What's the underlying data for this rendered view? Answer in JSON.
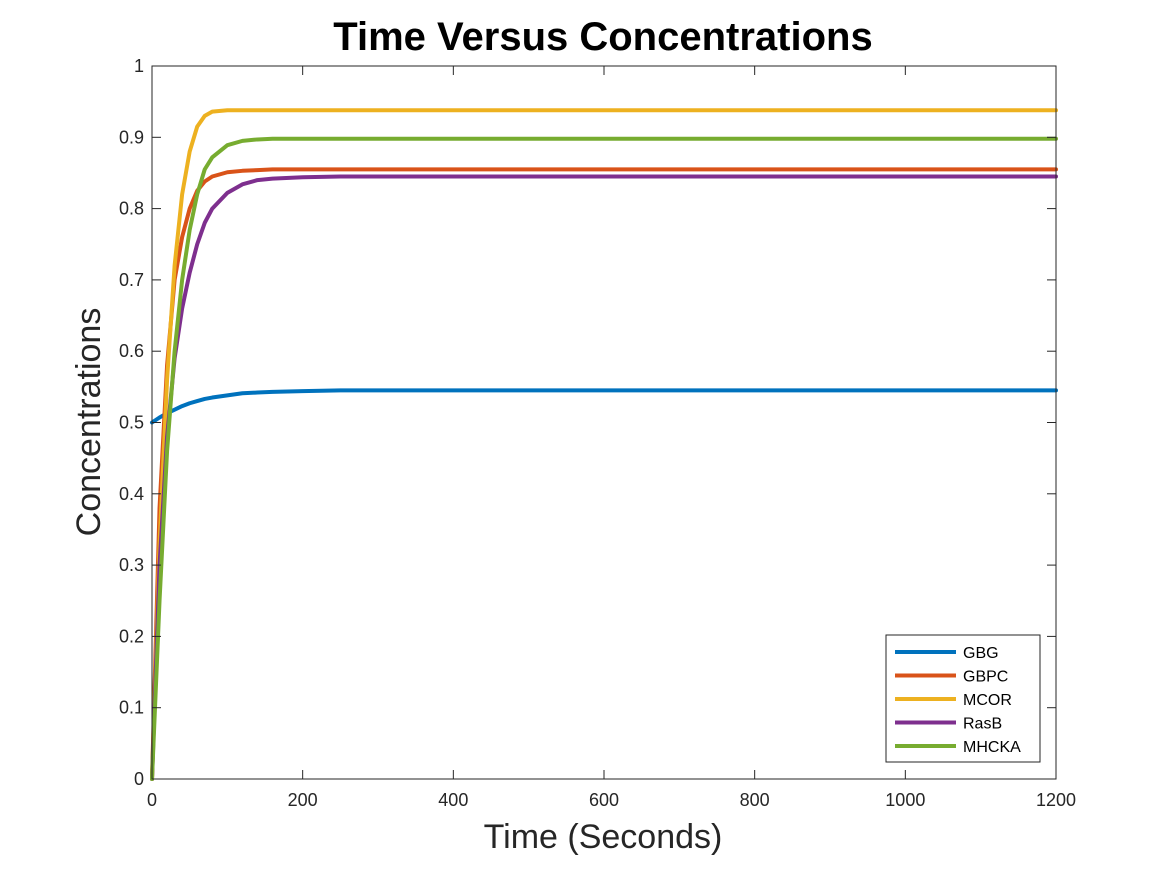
{
  "chart_data": {
    "type": "line",
    "title": "Time Versus Concentrations",
    "xlabel": "Time (Seconds)",
    "ylabel": "Concentrations",
    "xlim": [
      0,
      1200
    ],
    "ylim": [
      0,
      1
    ],
    "xticks": [
      "0",
      "200",
      "400",
      "600",
      "800",
      "1000",
      "1200"
    ],
    "xtick_values": [
      0,
      200,
      400,
      600,
      800,
      1000,
      1200
    ],
    "yticks": [
      "0",
      "0.1",
      "0.2",
      "0.3",
      "0.4",
      "0.5",
      "0.6",
      "0.7",
      "0.8",
      "0.9",
      "1"
    ],
    "ytick_values": [
      0,
      0.1,
      0.2,
      0.3,
      0.4,
      0.5,
      0.6,
      0.7,
      0.8,
      0.9,
      1
    ],
    "grid": false,
    "legend_position": "bottom-right",
    "x": [
      0,
      10,
      20,
      30,
      40,
      50,
      60,
      70,
      80,
      100,
      120,
      140,
      160,
      200,
      250,
      300,
      400,
      600,
      800,
      1000,
      1200
    ],
    "series": [
      {
        "name": "GBG",
        "color": "#0072BD",
        "values": [
          0.5,
          0.507,
          0.513,
          0.518,
          0.523,
          0.527,
          0.53,
          0.533,
          0.535,
          0.538,
          0.541,
          0.542,
          0.543,
          0.544,
          0.545,
          0.545,
          0.545,
          0.545,
          0.545,
          0.545,
          0.545
        ]
      },
      {
        "name": "GBPC",
        "color": "#D95319",
        "values": [
          0.0,
          0.38,
          0.58,
          0.7,
          0.76,
          0.8,
          0.825,
          0.838,
          0.845,
          0.851,
          0.853,
          0.854,
          0.855,
          0.855,
          0.855,
          0.855,
          0.855,
          0.855,
          0.855,
          0.855,
          0.855
        ]
      },
      {
        "name": "MCOR",
        "color": "#EDB120",
        "values": [
          0.0,
          0.33,
          0.56,
          0.72,
          0.82,
          0.88,
          0.915,
          0.93,
          0.936,
          0.938,
          0.938,
          0.938,
          0.938,
          0.938,
          0.938,
          0.938,
          0.938,
          0.938,
          0.938,
          0.938,
          0.938
        ]
      },
      {
        "name": "RasB",
        "color": "#7E2F8E",
        "values": [
          0.0,
          0.3,
          0.48,
          0.59,
          0.66,
          0.71,
          0.75,
          0.78,
          0.8,
          0.822,
          0.834,
          0.84,
          0.842,
          0.844,
          0.845,
          0.845,
          0.845,
          0.845,
          0.845,
          0.845,
          0.845
        ]
      },
      {
        "name": "MHCKA",
        "color": "#77AC30",
        "values": [
          0.0,
          0.25,
          0.46,
          0.6,
          0.7,
          0.77,
          0.82,
          0.855,
          0.872,
          0.889,
          0.895,
          0.897,
          0.898,
          0.898,
          0.898,
          0.898,
          0.898,
          0.898,
          0.898,
          0.898,
          0.898
        ]
      }
    ]
  }
}
